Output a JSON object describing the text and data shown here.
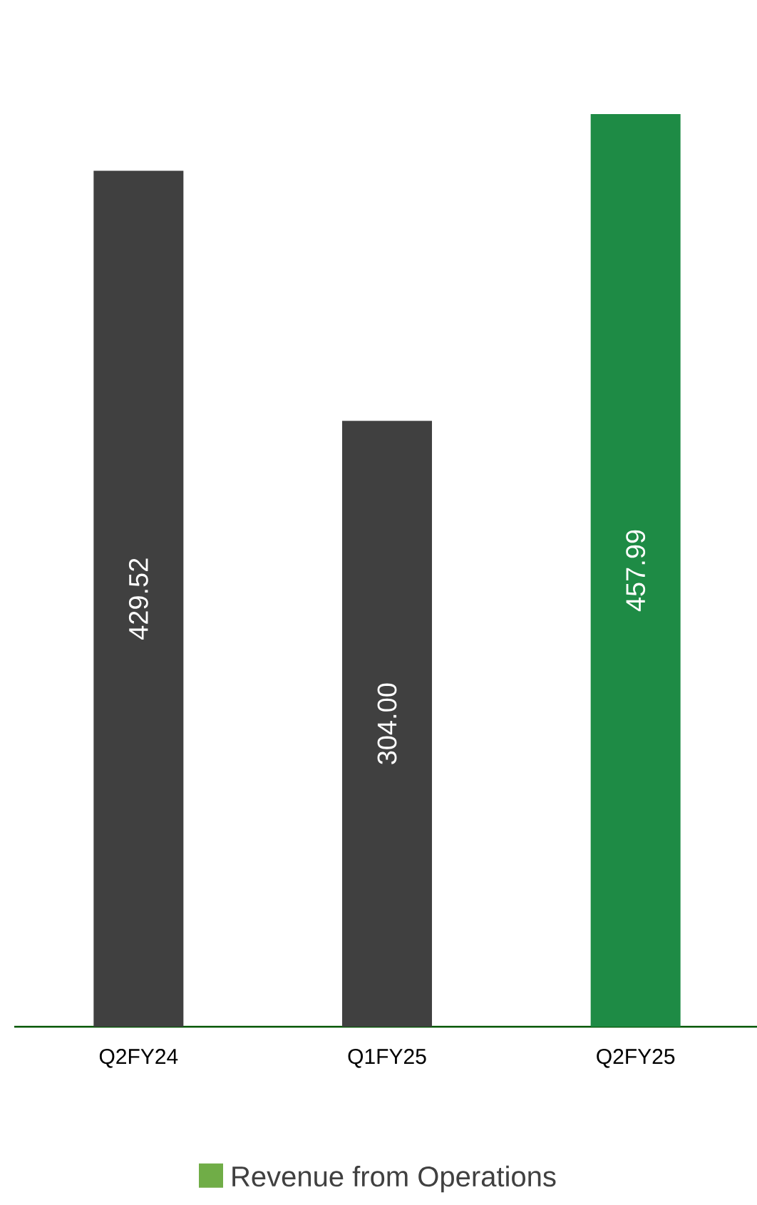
{
  "chart_data": {
    "type": "bar",
    "categories": [
      "Q2FY24",
      "Q1FY25",
      "Q2FY25"
    ],
    "series": [
      {
        "name": "Revenue from Operations",
        "color": "#70ad47",
        "values": [
          429.52,
          304.0,
          457.99
        ],
        "colors": [
          "#404040",
          "#404040",
          "#1e8b45"
        ],
        "value_labels": [
          "429.52",
          "304.00",
          "457.99"
        ]
      }
    ],
    "legend": "bottom",
    "grid": false
  }
}
